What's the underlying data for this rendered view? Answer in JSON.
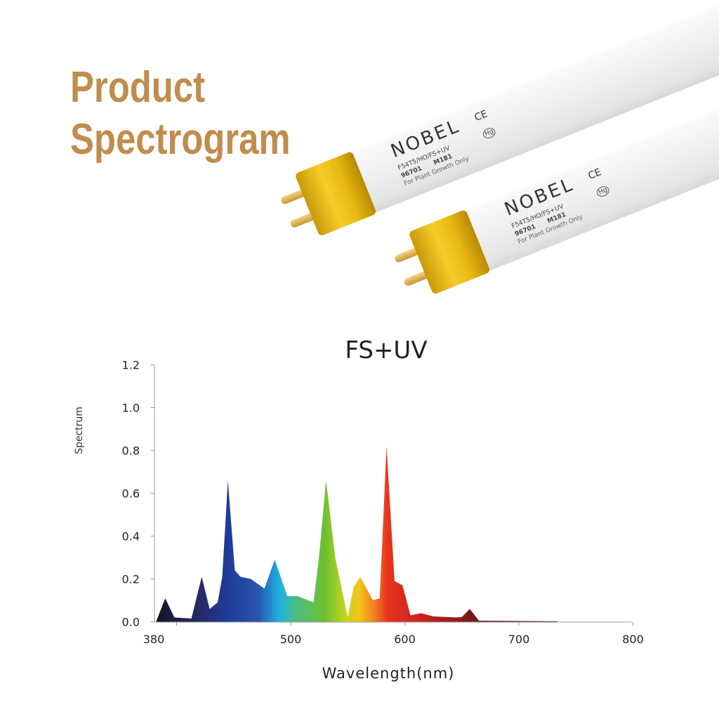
{
  "header": {
    "title_line1": "Product",
    "title_line2": "Spectrogram"
  },
  "product": {
    "brand": "NOBEL",
    "ce_mark": "CE",
    "model": "F54T5/HO/FS+UV",
    "code": "96701",
    "lot": "M181",
    "note": "For Plant Growth Only",
    "hg_mark": "Hg",
    "cap_color": "#f0c020"
  },
  "chart_data": {
    "type": "area",
    "title": "FS+UV",
    "xlabel": "Wavelength(nm)",
    "ylabel": "Spectrum",
    "xlim": [
      380,
      800
    ],
    "ylim": [
      0,
      1.2
    ],
    "xticks": [
      "380",
      "500",
      "600",
      "700",
      "800"
    ],
    "yticks": [
      "0.0",
      "0.2",
      "0.4",
      "0.6",
      "0.8",
      "1.0",
      "1.2"
    ],
    "grid": false,
    "fill": "visible-spectrum gradient",
    "series": [
      {
        "x": [
          382,
          390,
          398,
          413,
          422,
          429,
          436,
          440,
          445,
          451,
          456,
          465,
          477,
          486,
          497,
          506,
          520,
          525,
          531,
          539,
          550,
          555,
          561,
          572,
          578,
          584,
          591,
          598,
          605,
          614,
          625,
          645,
          650,
          657,
          665,
          734
        ],
        "y": [
          0,
          0.11,
          0.02,
          0.015,
          0.21,
          0.06,
          0.09,
          0.21,
          0.66,
          0.24,
          0.21,
          0.2,
          0.155,
          0.29,
          0.12,
          0.12,
          0.09,
          0.31,
          0.66,
          0.3,
          0.02,
          0.16,
          0.21,
          0.1,
          0.11,
          0.82,
          0.19,
          0.17,
          0.03,
          0.04,
          0.025,
          0.02,
          0.022,
          0.06,
          0.005,
          0.002
        ]
      }
    ]
  }
}
